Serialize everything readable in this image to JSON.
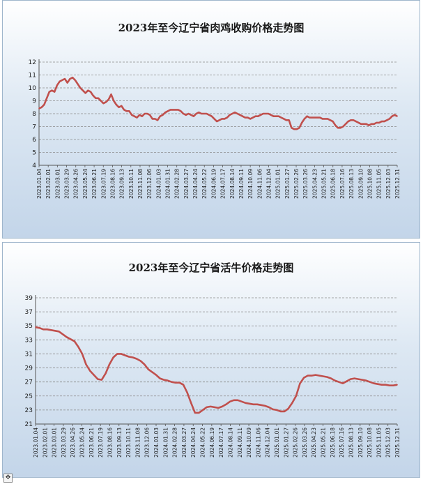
{
  "chart_data": [
    {
      "type": "line",
      "title": "2023年至今辽宁省肉鸡收购价格走势图",
      "xlabel": "",
      "ylabel": "",
      "ylim": [
        4,
        12
      ],
      "yticks": [
        4,
        5,
        6,
        7,
        8,
        9,
        10,
        11,
        12
      ],
      "grid": true,
      "line_color": "#c0504d",
      "x_tick_labels": [
        "2023.01.04",
        "2023.02.01",
        "2023.03.01",
        "2023.03.29",
        "2023.04.26",
        "2023.05.24",
        "2023.06.21",
        "2023.07.19",
        "2023.08.16",
        "2023.09.13",
        "2023.10.11",
        "2023.11.08",
        "2023.12.06",
        "2024.01.03",
        "2024.01.31",
        "2024.02.28",
        "2024.03.27",
        "2024.04.24",
        "2024.05.22",
        "2024.06.19",
        "2024.07.17",
        "2024.08.14",
        "2024.09.11",
        "2024.10.09",
        "2024.11.06",
        "2024.12.04",
        "2025.01.01",
        "2025.01.27",
        "2025.02.26",
        "2025.03.26",
        "2025.04.23",
        "2025.05.21",
        "2025.06.18",
        "2025.07.16",
        "2025.08.13",
        "2025.09.10",
        "2025.10.08",
        "2025.11.05",
        "2025.12.03",
        "2025.12.31"
      ],
      "y": [
        8.4,
        8.5,
        8.7,
        9.2,
        9.7,
        9.8,
        9.7,
        10.2,
        10.5,
        10.6,
        10.7,
        10.4,
        10.7,
        10.8,
        10.6,
        10.3,
        10.0,
        9.8,
        9.6,
        9.8,
        9.7,
        9.4,
        9.2,
        9.2,
        9.0,
        8.8,
        8.9,
        9.1,
        9.5,
        9.0,
        8.7,
        8.5,
        8.6,
        8.3,
        8.2,
        8.2,
        7.9,
        7.8,
        7.7,
        7.9,
        7.8,
        8.0,
        8.0,
        7.9,
        7.6,
        7.6,
        7.5,
        7.8,
        7.9,
        8.1,
        8.2,
        8.3,
        8.3,
        8.3,
        8.3,
        8.2,
        8.0,
        7.9,
        8.0,
        7.9,
        7.8,
        8.0,
        8.1,
        8.0,
        8.0,
        8.0,
        7.9,
        7.8,
        7.6,
        7.4,
        7.5,
        7.6,
        7.6,
        7.7,
        7.9,
        8.0,
        8.1,
        8.0,
        7.9,
        7.8,
        7.7,
        7.7,
        7.6,
        7.7,
        7.8,
        7.8,
        7.9,
        8.0,
        8.0,
        8.0,
        7.9,
        7.8,
        7.8,
        7.8,
        7.7,
        7.6,
        7.5,
        7.5,
        6.9,
        6.8,
        6.8,
        6.9,
        7.3,
        7.6,
        7.8,
        7.7,
        7.7,
        7.7,
        7.7,
        7.7,
        7.6,
        7.6,
        7.6,
        7.5,
        7.4,
        7.1,
        6.9,
        6.9,
        7.0,
        7.2,
        7.4,
        7.5,
        7.5,
        7.4,
        7.3,
        7.2,
        7.2,
        7.2,
        7.1,
        7.2,
        7.2,
        7.3,
        7.3,
        7.4,
        7.4,
        7.5,
        7.6,
        7.8,
        7.9,
        7.8
      ]
    },
    {
      "type": "line",
      "title": "2023年至今辽宁省活牛价格走势图",
      "xlabel": "",
      "ylabel": "",
      "ylim": [
        21,
        39
      ],
      "yticks": [
        21,
        23,
        25,
        27,
        29,
        31,
        33,
        35,
        37,
        39
      ],
      "grid": true,
      "line_color": "#c0504d",
      "x_tick_labels": [
        "2023.01.04",
        "2023.02.01",
        "2023.03.01",
        "2023.03.29",
        "2023.04.26",
        "2023.05.24",
        "2023.06.21",
        "2023.07.19",
        "2023.08.16",
        "2023.09.13",
        "2023.10.11",
        "2023.11.08",
        "2023.12.06",
        "2024.01.03",
        "2024.01.31",
        "2024.02.28",
        "2024.03.27",
        "2024.04.24",
        "2024.05.22",
        "2024.06.19",
        "2024.07.17",
        "2024.08.14",
        "2024.09.11",
        "2024.10.09",
        "2024.11.06",
        "2024.12.04",
        "2025.01.01",
        "2025.01.27",
        "2025.02.26",
        "2025.03.26",
        "2025.04.23",
        "2025.05.21",
        "2025.06.18",
        "2025.07.16",
        "2025.08.13",
        "2025.09.10",
        "2025.10.08",
        "2025.11.05",
        "2025.12.03",
        "2025.12.31"
      ],
      "y": [
        34.8,
        34.7,
        34.5,
        34.5,
        34.4,
        34.3,
        34.2,
        33.8,
        33.4,
        33.1,
        32.8,
        32.0,
        31.0,
        29.5,
        28.6,
        28.0,
        27.4,
        27.3,
        28.2,
        29.5,
        30.5,
        31.0,
        31.0,
        30.8,
        30.6,
        30.5,
        30.3,
        30.0,
        29.5,
        28.8,
        28.4,
        28.0,
        27.5,
        27.3,
        27.2,
        27.0,
        26.9,
        26.9,
        26.6,
        25.5,
        24.0,
        22.6,
        22.6,
        23.0,
        23.4,
        23.5,
        23.4,
        23.3,
        23.5,
        23.8,
        24.2,
        24.4,
        24.4,
        24.2,
        24.0,
        23.9,
        23.8,
        23.8,
        23.7,
        23.6,
        23.4,
        23.1,
        23.0,
        22.8,
        22.8,
        23.2,
        24.0,
        25.0,
        26.8,
        27.6,
        27.9,
        27.9,
        28.0,
        27.9,
        27.8,
        27.7,
        27.5,
        27.2,
        27.0,
        26.8,
        27.1,
        27.4,
        27.5,
        27.4,
        27.3,
        27.2,
        27.0,
        26.8,
        26.7,
        26.6,
        26.6,
        26.5,
        26.5,
        26.6
      ]
    }
  ],
  "ui": {
    "move_handle_glyph": "✥"
  }
}
